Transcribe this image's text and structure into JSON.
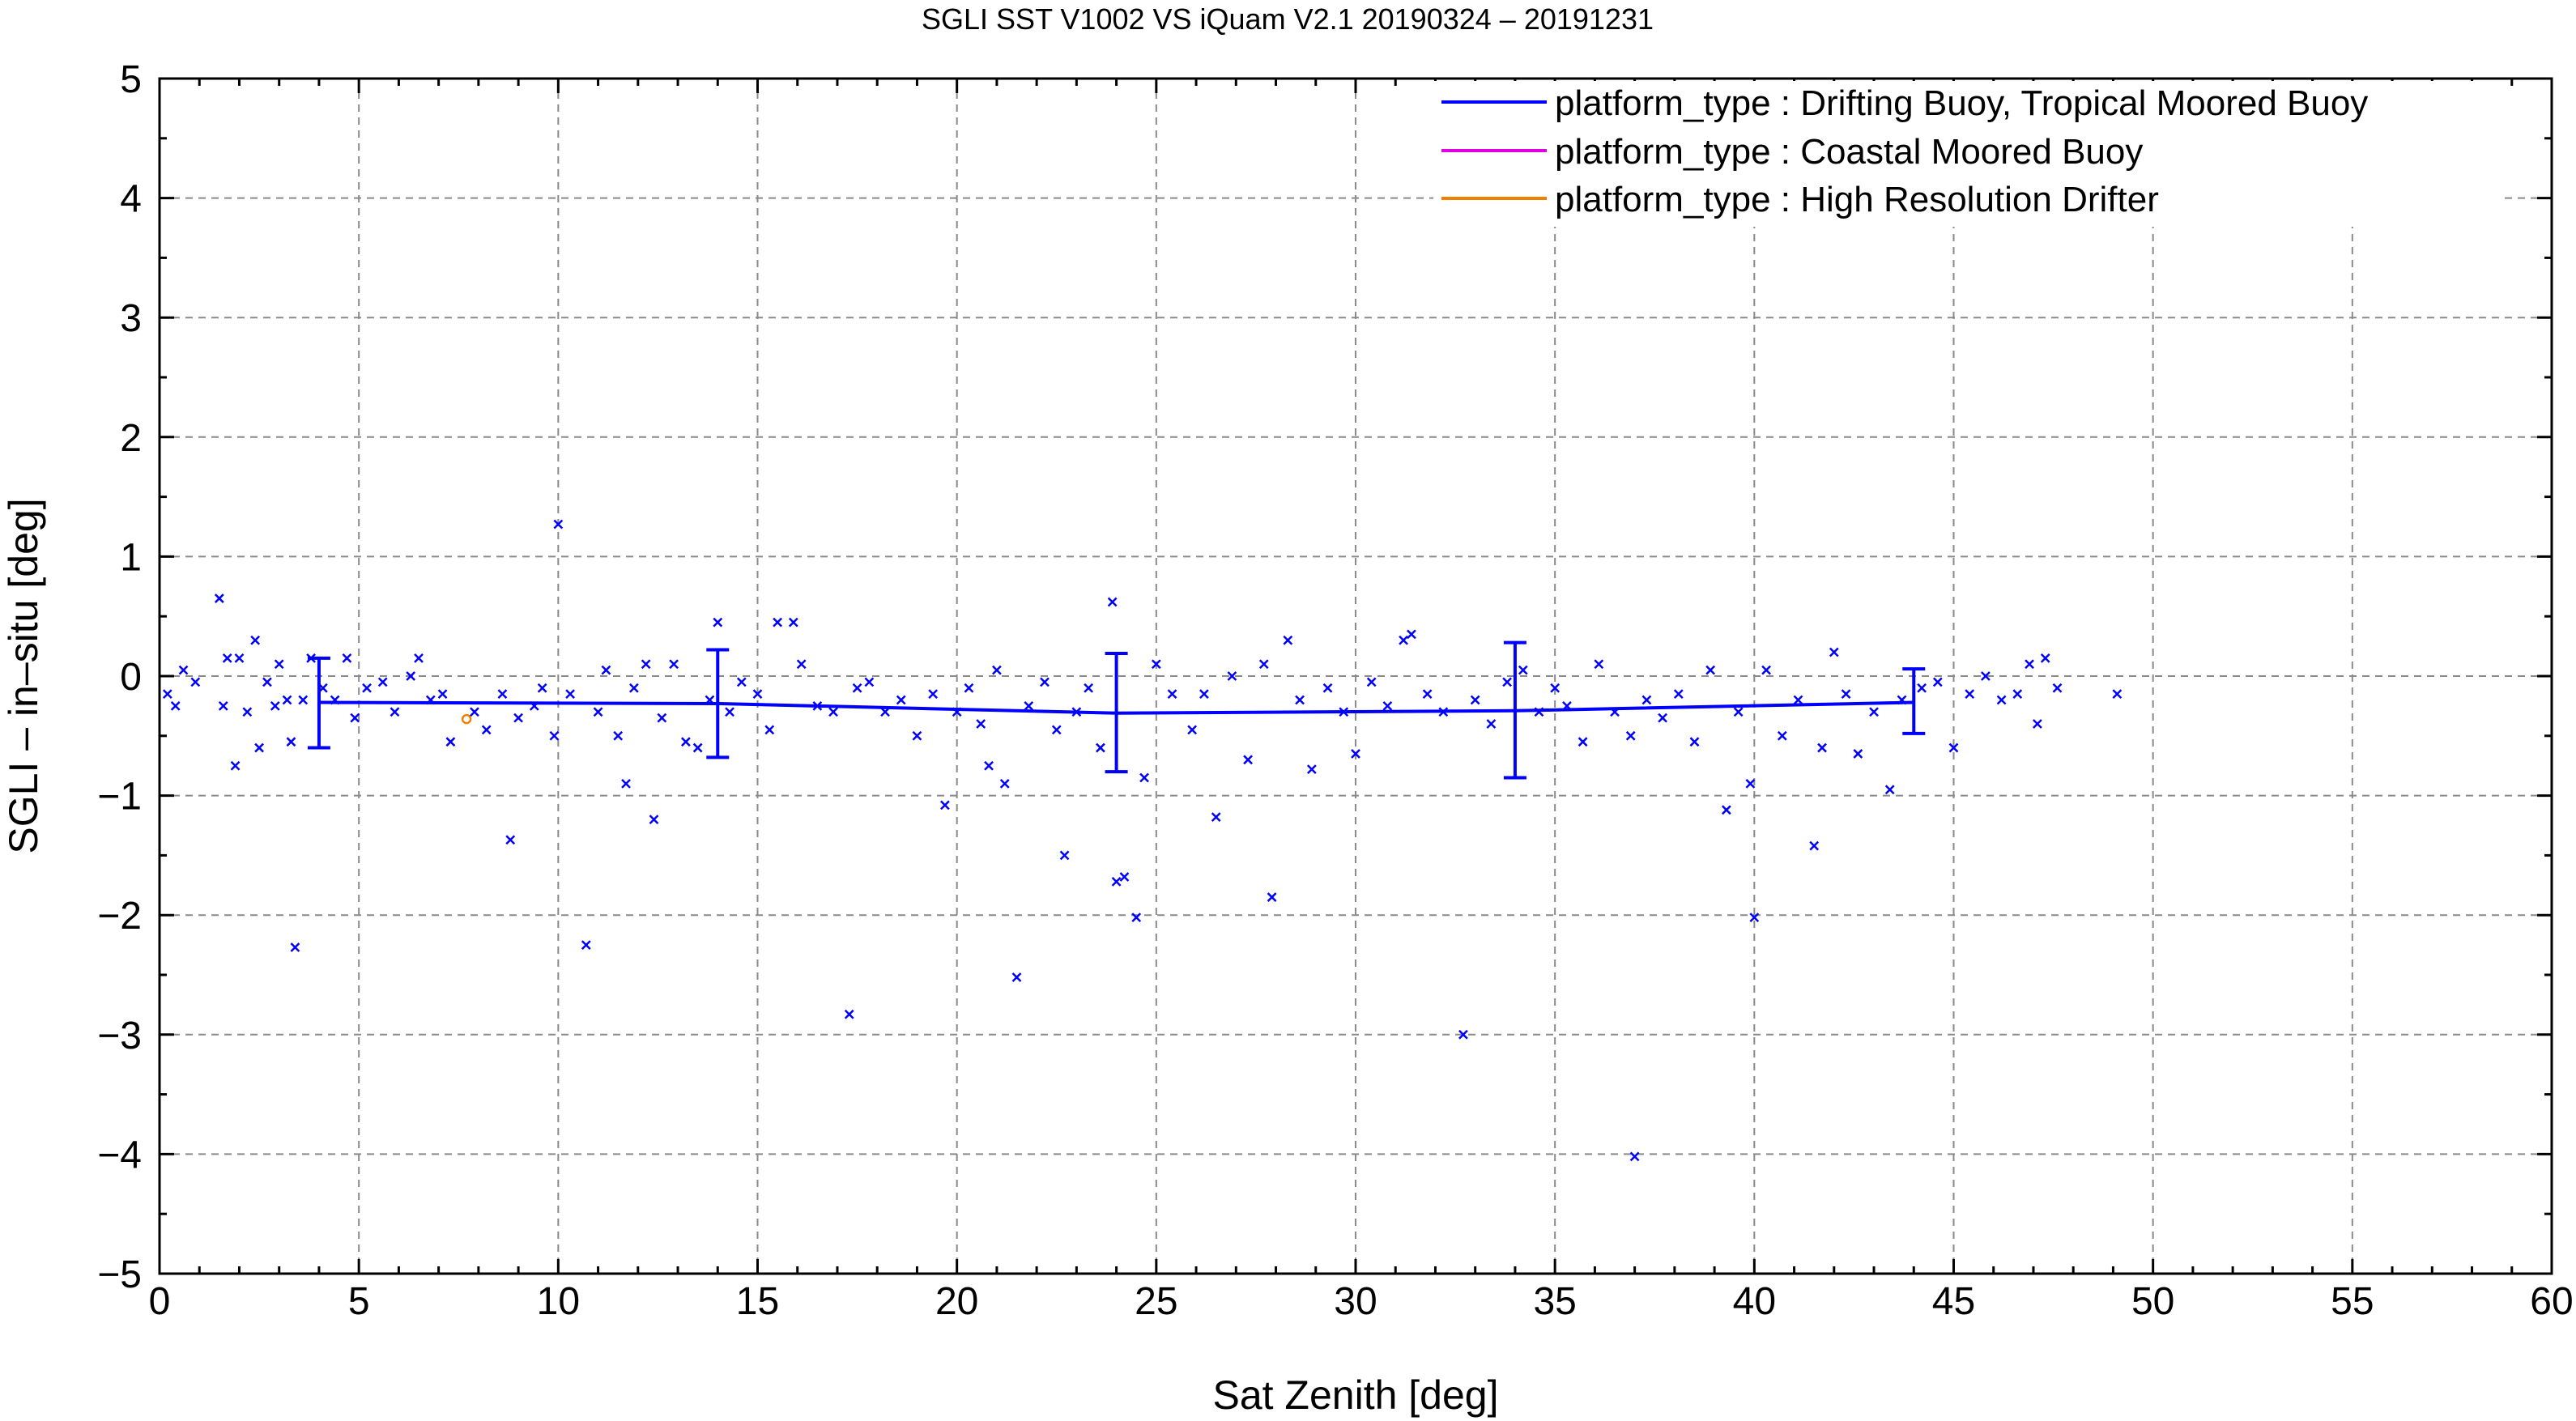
{
  "chart_data": {
    "type": "scatter",
    "title": "SGLI SST V1002 VS iQuam V2.1 20190324 – 20191231",
    "xlabel": "Sat Zenith [deg]",
    "ylabel": "SGLI – in–situ [deg]",
    "xlim": [
      0,
      60
    ],
    "ylim": [
      -5,
      5
    ],
    "x_ticks": [
      "0",
      "5",
      "10",
      "15",
      "20",
      "25",
      "30",
      "35",
      "40",
      "45",
      "50",
      "55",
      "60"
    ],
    "y_ticks": [
      "5",
      "4",
      "3",
      "2",
      "1",
      "0",
      "−1",
      "−2",
      "−3",
      "−4",
      "−5"
    ],
    "grid": true,
    "legend_position": "top-right",
    "series": [
      {
        "name": "platform_type : Drifting Buoy, Tropical Moored Buoy",
        "color": "#0000ff",
        "marker": "x",
        "mean_line": {
          "x": [
            4,
            14,
            24,
            34,
            44
          ],
          "y": [
            -0.22,
            -0.23,
            -0.31,
            -0.29,
            -0.22
          ]
        },
        "error_bars": [
          {
            "x": 4,
            "low": -0.6,
            "high": 0.15
          },
          {
            "x": 14,
            "low": -0.68,
            "high": 0.22
          },
          {
            "x": 24,
            "low": -0.8,
            "high": 0.19
          },
          {
            "x": 34,
            "low": -0.85,
            "high": 0.28
          },
          {
            "x": 44,
            "low": -0.48,
            "high": 0.06
          }
        ],
        "points": [
          [
            0.2,
            -0.15
          ],
          [
            0.4,
            -0.25
          ],
          [
            0.6,
            0.05
          ],
          [
            0.9,
            -0.05
          ],
          [
            1.5,
            0.65
          ],
          [
            1.6,
            -0.25
          ],
          [
            1.7,
            0.15
          ],
          [
            1.9,
            -0.75
          ],
          [
            2.0,
            0.15
          ],
          [
            2.2,
            -0.3
          ],
          [
            2.4,
            0.3
          ],
          [
            2.5,
            -0.6
          ],
          [
            2.7,
            -0.05
          ],
          [
            2.9,
            -0.25
          ],
          [
            3.0,
            0.1
          ],
          [
            3.2,
            -0.2
          ],
          [
            3.3,
            -0.55
          ],
          [
            3.4,
            -2.27
          ],
          [
            3.6,
            -0.2
          ],
          [
            3.8,
            0.15
          ],
          [
            4.1,
            -0.1
          ],
          [
            4.4,
            -0.2
          ],
          [
            4.7,
            0.15
          ],
          [
            4.9,
            -0.35
          ],
          [
            5.2,
            -0.1
          ],
          [
            5.6,
            -0.05
          ],
          [
            5.9,
            -0.3
          ],
          [
            6.3,
            0.0
          ],
          [
            6.5,
            0.15
          ],
          [
            6.8,
            -0.2
          ],
          [
            7.1,
            -0.15
          ],
          [
            7.3,
            -0.55
          ],
          [
            7.9,
            -0.3
          ],
          [
            8.2,
            -0.45
          ],
          [
            8.6,
            -0.15
          ],
          [
            8.8,
            -1.37
          ],
          [
            9.0,
            -0.35
          ],
          [
            9.4,
            -0.25
          ],
          [
            9.6,
            -0.1
          ],
          [
            9.9,
            -0.5
          ],
          [
            10.0,
            1.27
          ],
          [
            10.3,
            -0.15
          ],
          [
            10.7,
            -2.25
          ],
          [
            11.0,
            -0.3
          ],
          [
            11.2,
            0.05
          ],
          [
            11.5,
            -0.5
          ],
          [
            11.7,
            -0.9
          ],
          [
            11.9,
            -0.1
          ],
          [
            12.2,
            0.1
          ],
          [
            12.4,
            -1.2
          ],
          [
            12.6,
            -0.35
          ],
          [
            12.9,
            0.1
          ],
          [
            13.2,
            -0.55
          ],
          [
            13.5,
            -0.6
          ],
          [
            13.8,
            -0.2
          ],
          [
            14.0,
            0.45
          ],
          [
            14.3,
            -0.3
          ],
          [
            14.6,
            -0.05
          ],
          [
            15.0,
            -0.15
          ],
          [
            15.3,
            -0.45
          ],
          [
            15.5,
            0.45
          ],
          [
            15.9,
            0.45
          ],
          [
            16.1,
            0.1
          ],
          [
            16.5,
            -0.25
          ],
          [
            16.9,
            -0.3
          ],
          [
            17.3,
            -2.83
          ],
          [
            17.5,
            -0.1
          ],
          [
            17.8,
            -0.05
          ],
          [
            18.2,
            -0.3
          ],
          [
            18.6,
            -0.2
          ],
          [
            19.0,
            -0.5
          ],
          [
            19.4,
            -0.15
          ],
          [
            19.7,
            -1.08
          ],
          [
            20.0,
            -0.3
          ],
          [
            20.3,
            -0.1
          ],
          [
            20.6,
            -0.4
          ],
          [
            20.8,
            -0.75
          ],
          [
            21.0,
            0.05
          ],
          [
            21.2,
            -0.9
          ],
          [
            21.5,
            -2.52
          ],
          [
            21.8,
            -0.25
          ],
          [
            22.2,
            -0.05
          ],
          [
            22.5,
            -0.45
          ],
          [
            22.7,
            -1.5
          ],
          [
            23.0,
            -0.3
          ],
          [
            23.3,
            -0.1
          ],
          [
            23.6,
            -0.6
          ],
          [
            23.9,
            0.62
          ],
          [
            24.0,
            -1.72
          ],
          [
            24.2,
            -1.68
          ],
          [
            24.5,
            -2.02
          ],
          [
            24.7,
            -0.85
          ],
          [
            25.0,
            0.1
          ],
          [
            25.4,
            -0.15
          ],
          [
            25.9,
            -0.45
          ],
          [
            26.2,
            -0.15
          ],
          [
            26.5,
            -1.18
          ],
          [
            26.9,
            0.0
          ],
          [
            27.3,
            -0.7
          ],
          [
            27.7,
            0.1
          ],
          [
            27.9,
            -1.85
          ],
          [
            28.3,
            0.3
          ],
          [
            28.6,
            -0.2
          ],
          [
            28.9,
            -0.78
          ],
          [
            29.3,
            -0.1
          ],
          [
            29.7,
            -0.3
          ],
          [
            30.0,
            -0.65
          ],
          [
            30.4,
            -0.05
          ],
          [
            30.8,
            -0.25
          ],
          [
            31.2,
            0.3
          ],
          [
            31.4,
            0.35
          ],
          [
            31.8,
            -0.15
          ],
          [
            32.2,
            -0.3
          ],
          [
            32.7,
            -3.0
          ],
          [
            33.0,
            -0.2
          ],
          [
            33.4,
            -0.4
          ],
          [
            33.8,
            -0.05
          ],
          [
            34.2,
            0.05
          ],
          [
            34.6,
            -0.3
          ],
          [
            35.0,
            -0.1
          ],
          [
            35.3,
            -0.25
          ],
          [
            35.7,
            -0.55
          ],
          [
            36.1,
            0.1
          ],
          [
            36.5,
            -0.3
          ],
          [
            36.9,
            -0.5
          ],
          [
            37.0,
            -4.02
          ],
          [
            37.3,
            -0.2
          ],
          [
            37.7,
            -0.35
          ],
          [
            38.1,
            -0.15
          ],
          [
            38.5,
            -0.55
          ],
          [
            38.9,
            0.05
          ],
          [
            39.3,
            -1.12
          ],
          [
            39.6,
            -0.3
          ],
          [
            39.9,
            -0.9
          ],
          [
            40.0,
            -2.02
          ],
          [
            40.3,
            0.05
          ],
          [
            40.7,
            -0.5
          ],
          [
            41.1,
            -0.2
          ],
          [
            41.5,
            -1.42
          ],
          [
            41.7,
            -0.6
          ],
          [
            42.0,
            0.2
          ],
          [
            42.3,
            -0.15
          ],
          [
            42.6,
            -0.65
          ],
          [
            43.0,
            -0.3
          ],
          [
            43.4,
            -0.95
          ],
          [
            43.7,
            -0.2
          ],
          [
            44.2,
            -0.1
          ],
          [
            44.6,
            -0.05
          ],
          [
            45.0,
            -0.6
          ],
          [
            45.4,
            -0.15
          ],
          [
            45.8,
            0.0
          ],
          [
            46.2,
            -0.2
          ],
          [
            46.6,
            -0.15
          ],
          [
            46.9,
            0.1
          ],
          [
            47.1,
            -0.4
          ],
          [
            47.3,
            0.15
          ],
          [
            47.6,
            -0.1
          ],
          [
            49.1,
            -0.15
          ]
        ]
      },
      {
        "name": "platform_type : Coastal Moored Buoy",
        "color": "#e000e0",
        "marker": "x",
        "points": []
      },
      {
        "name": "platform_type : High Resolution Drifter",
        "color": "#f08000",
        "marker": "circle",
        "points": [
          [
            7.7,
            -0.36
          ]
        ]
      }
    ]
  }
}
